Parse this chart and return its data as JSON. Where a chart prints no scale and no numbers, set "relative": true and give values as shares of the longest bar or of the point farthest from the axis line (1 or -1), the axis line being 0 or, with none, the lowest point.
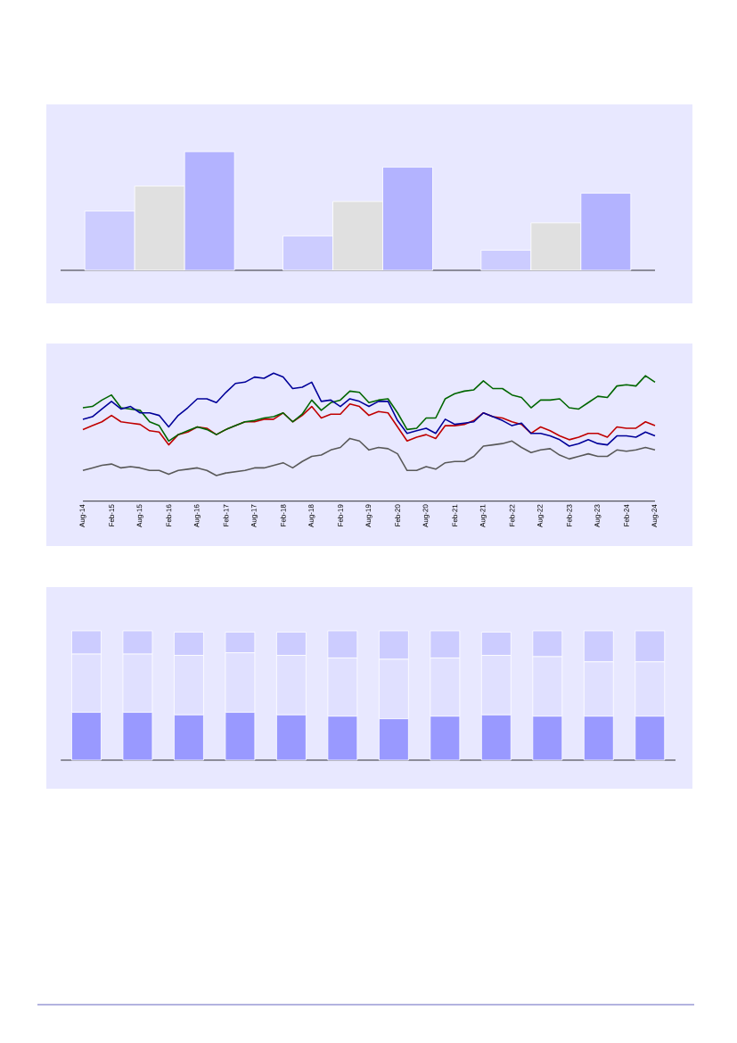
{
  "chart_data": [
    {
      "type": "bar",
      "relative": true,
      "categories": [
        null,
        null,
        null
      ],
      "series": [
        {
          "color": "#ccccff",
          "values": [
            0.5,
            0.29,
            0.17
          ]
        },
        {
          "color": "#e0e0e0",
          "values": [
            0.71,
            0.58,
            0.4
          ]
        },
        {
          "color": "#b3b3ff",
          "values": [
            1.0,
            0.87,
            0.65
          ]
        }
      ]
    },
    {
      "type": "line",
      "relative": true,
      "x": [
        "2014-08",
        "2014-10",
        "2014-12",
        "2015-02",
        "2015-04",
        "2015-06",
        "2015-08",
        "2015-10",
        "2015-12",
        "2016-02",
        "2016-04",
        "2016-06",
        "2016-08",
        "2016-10",
        "2016-12",
        "2017-02",
        "2017-04",
        "2017-06",
        "2017-08",
        "2017-10",
        "2017-12",
        "2018-02",
        "2018-04",
        "2018-06",
        "2018-08",
        "2018-10",
        "2018-12",
        "2019-02",
        "2019-04",
        "2019-06",
        "2019-08",
        "2019-10",
        "2019-12",
        "2020-02",
        "2020-04",
        "2020-06",
        "2020-08",
        "2020-10",
        "2020-12",
        "2021-02",
        "2021-04",
        "2021-06",
        "2021-08",
        "2021-10",
        "2021-12",
        "2022-02",
        "2022-04",
        "2022-06",
        "2022-08",
        "2022-10",
        "2022-12",
        "2023-02",
        "2023-04",
        "2023-06",
        "2023-08",
        "2023-10",
        "2023-12",
        "2024-02",
        "2024-04",
        "2024-06",
        "2024-08"
      ],
      "xlim": [
        "2014-08",
        "2024-08"
      ],
      "xticks": [
        {
          "value": "2014-08",
          "label": "Aug-14"
        },
        {
          "value": "2015-02",
          "label": "Feb-15"
        },
        {
          "value": "2015-08",
          "label": "Aug-15"
        },
        {
          "value": "2016-02",
          "label": "Feb-16"
        },
        {
          "value": "2016-08",
          "label": "Aug-16"
        },
        {
          "value": "2017-02",
          "label": "Feb-17"
        },
        {
          "value": "2017-08",
          "label": "Aug-17"
        },
        {
          "value": "2018-02",
          "label": "Feb-18"
        },
        {
          "value": "2018-08",
          "label": "Aug-18"
        },
        {
          "value": "2019-02",
          "label": "Feb-19"
        },
        {
          "value": "2019-08",
          "label": "Aug-19"
        },
        {
          "value": "2020-02",
          "label": "Feb-20"
        },
        {
          "value": "2020-08",
          "label": "Aug-20"
        },
        {
          "value": "2021-02",
          "label": "Feb-21"
        },
        {
          "value": "2021-08",
          "label": "Aug-21"
        },
        {
          "value": "2022-02",
          "label": "Feb-22"
        },
        {
          "value": "2022-08",
          "label": "Aug-22"
        },
        {
          "value": "2023-02",
          "label": "Feb-23"
        },
        {
          "value": "2023-08",
          "label": "Aug-23"
        },
        {
          "value": "2024-02",
          "label": "Feb-24"
        },
        {
          "value": "2024-08",
          "label": "Aug-24"
        }
      ],
      "series": [
        {
          "color": "#c00000",
          "values": [
            0.56,
            0.59,
            0.62,
            0.67,
            0.62,
            0.61,
            0.6,
            0.55,
            0.54,
            0.44,
            0.52,
            0.54,
            0.58,
            0.57,
            0.52,
            0.56,
            0.59,
            0.62,
            0.62,
            0.64,
            0.64,
            0.69,
            0.62,
            0.67,
            0.74,
            0.65,
            0.68,
            0.68,
            0.76,
            0.74,
            0.67,
            0.7,
            0.69,
            0.58,
            0.47,
            0.5,
            0.52,
            0.49,
            0.59,
            0.59,
            0.6,
            0.63,
            0.69,
            0.66,
            0.65,
            0.62,
            0.6,
            0.53,
            0.58,
            0.55,
            0.51,
            0.48,
            0.5,
            0.53,
            0.53,
            0.5,
            0.58,
            0.57,
            0.57,
            0.62,
            0.59
          ]
        },
        {
          "color": "#006600",
          "values": [
            0.73,
            0.74,
            0.79,
            0.83,
            0.73,
            0.72,
            0.71,
            0.62,
            0.59,
            0.47,
            0.52,
            0.55,
            0.58,
            0.56,
            0.52,
            0.56,
            0.59,
            0.62,
            0.63,
            0.65,
            0.66,
            0.69,
            0.62,
            0.68,
            0.79,
            0.71,
            0.77,
            0.79,
            0.86,
            0.85,
            0.77,
            0.79,
            0.8,
            0.69,
            0.56,
            0.57,
            0.65,
            0.65,
            0.8,
            0.84,
            0.86,
            0.87,
            0.94,
            0.88,
            0.88,
            0.83,
            0.81,
            0.73,
            0.79,
            0.79,
            0.8,
            0.73,
            0.72,
            0.77,
            0.82,
            0.81,
            0.9,
            0.91,
            0.9,
            0.98,
            0.93
          ]
        },
        {
          "color": "#000099",
          "values": [
            0.64,
            0.66,
            0.72,
            0.78,
            0.72,
            0.74,
            0.69,
            0.69,
            0.67,
            0.58,
            0.67,
            0.73,
            0.8,
            0.8,
            0.77,
            0.85,
            0.92,
            0.93,
            0.97,
            0.96,
            1.0,
            0.97,
            0.88,
            0.89,
            0.93,
            0.78,
            0.79,
            0.74,
            0.8,
            0.78,
            0.74,
            0.78,
            0.78,
            0.63,
            0.53,
            0.55,
            0.57,
            0.53,
            0.64,
            0.6,
            0.61,
            0.62,
            0.69,
            0.66,
            0.63,
            0.59,
            0.61,
            0.53,
            0.53,
            0.51,
            0.48,
            0.43,
            0.45,
            0.48,
            0.45,
            0.44,
            0.51,
            0.51,
            0.5,
            0.54,
            0.51
          ]
        },
        {
          "color": "#595959",
          "values": [
            0.24,
            0.26,
            0.28,
            0.29,
            0.26,
            0.27,
            0.26,
            0.24,
            0.24,
            0.21,
            0.24,
            0.25,
            0.26,
            0.24,
            0.2,
            0.22,
            0.23,
            0.24,
            0.26,
            0.26,
            0.28,
            0.3,
            0.26,
            0.31,
            0.35,
            0.36,
            0.4,
            0.42,
            0.49,
            0.47,
            0.4,
            0.42,
            0.41,
            0.37,
            0.24,
            0.24,
            0.27,
            0.25,
            0.3,
            0.31,
            0.31,
            0.35,
            0.43,
            0.44,
            0.45,
            0.47,
            0.42,
            0.38,
            0.4,
            0.41,
            0.36,
            0.33,
            0.35,
            0.37,
            0.35,
            0.35,
            0.4,
            0.39,
            0.4,
            0.42,
            0.4
          ]
        }
      ]
    },
    {
      "type": "bar",
      "relative": true,
      "stacked": true,
      "categories": [
        null,
        null,
        null,
        null,
        null,
        null,
        null,
        null,
        null,
        null,
        null,
        null
      ],
      "series": [
        {
          "color": "#9999ff",
          "values": [
            0.37,
            0.37,
            0.35,
            0.37,
            0.35,
            0.34,
            0.32,
            0.34,
            0.35,
            0.34,
            0.34,
            0.34
          ]
        },
        {
          "color": "#e0e0ff",
          "values": [
            0.45,
            0.45,
            0.46,
            0.46,
            0.46,
            0.45,
            0.46,
            0.45,
            0.46,
            0.46,
            0.42,
            0.42
          ]
        },
        {
          "color": "#ccccff",
          "values": [
            0.18,
            0.18,
            0.18,
            0.16,
            0.18,
            0.21,
            0.22,
            0.21,
            0.18,
            0.2,
            0.24,
            0.24
          ]
        }
      ]
    }
  ]
}
